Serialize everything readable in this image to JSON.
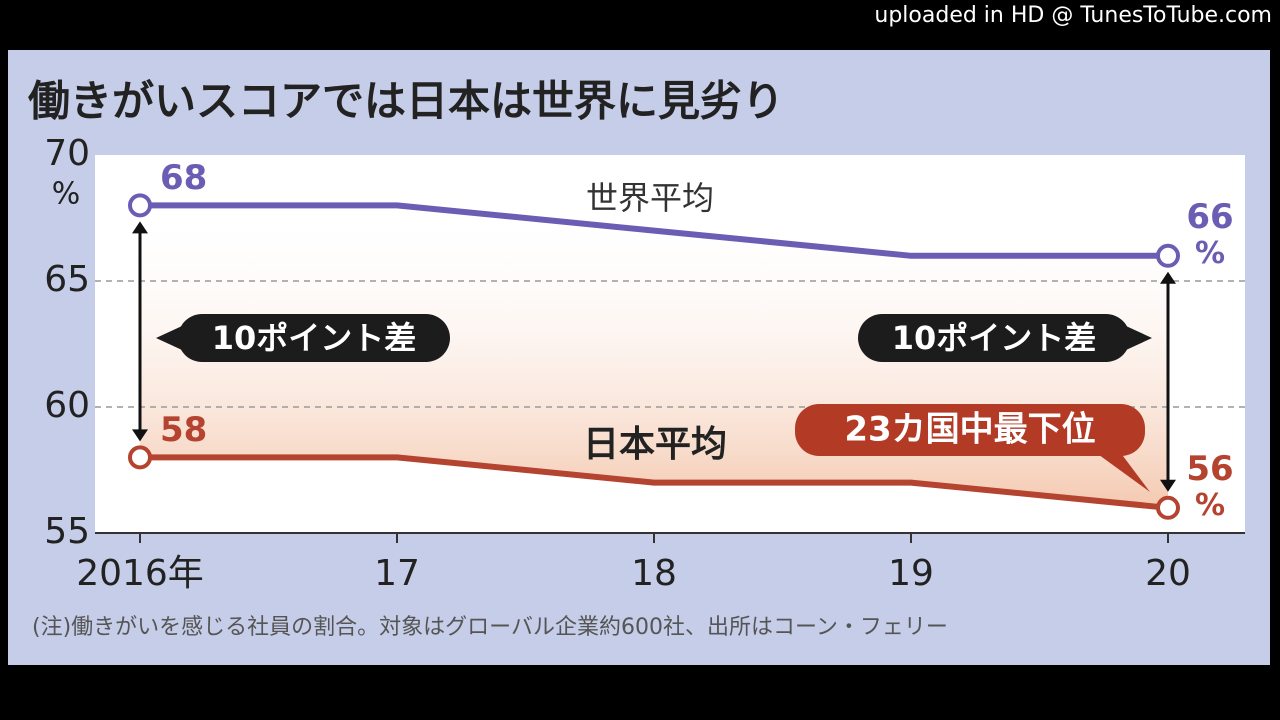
{
  "watermark": "uploaded in HD @ TunesToTube.com",
  "chart_data": {
    "type": "line",
    "title": "働きがいスコアでは日本は世界に見劣り",
    "y_unit": "%",
    "categories": [
      "2016年",
      "17",
      "18",
      "19",
      "20"
    ],
    "series": [
      {
        "name": "世界平均",
        "color": "#6a5db3",
        "values": [
          68,
          68,
          67,
          66,
          66
        ],
        "value_labels": [
          "68",
          null,
          null,
          null,
          "66%"
        ]
      },
      {
        "name": "日本平均",
        "color": "#b4442f",
        "values": [
          58,
          58,
          57,
          57,
          56
        ],
        "value_labels": [
          "58",
          null,
          null,
          null,
          "56%"
        ]
      }
    ],
    "ylim": [
      55,
      70
    ],
    "yticks": [
      55,
      60,
      65,
      70
    ],
    "grid": true,
    "annotations": [
      "10ポイント差",
      "10ポイント差",
      "23カ国中最下位"
    ],
    "note": "(注)働きがいを感じる社員の割合。対象はグローバル企業約600社、出所はコーン・フェリー"
  }
}
